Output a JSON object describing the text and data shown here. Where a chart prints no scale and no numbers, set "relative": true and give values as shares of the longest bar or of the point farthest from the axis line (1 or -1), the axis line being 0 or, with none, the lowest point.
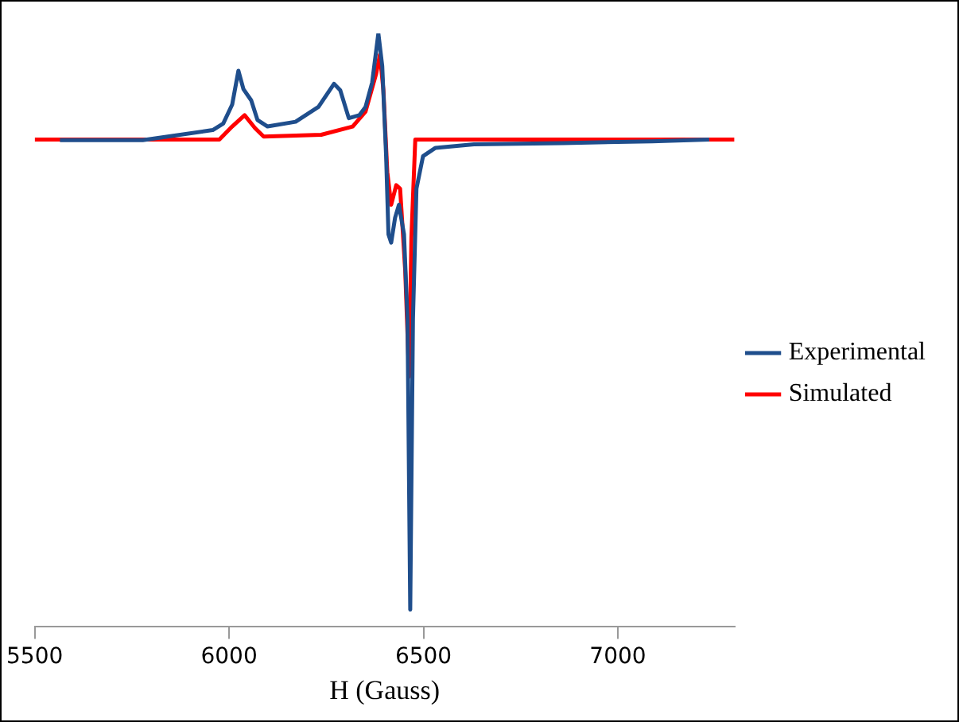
{
  "chart_data": {
    "type": "line",
    "xlabel": "H (Gauss)",
    "relative": true,
    "xlim": [
      5500,
      7300
    ],
    "xticks": [
      5500,
      6000,
      6500,
      7000
    ],
    "grid": false,
    "legend": "right",
    "marker": "none",
    "line_style": "solid",
    "series": [
      {
        "name": "Experimental",
        "color": "#1f4e8c",
        "x": [
          5565,
          5778,
          5958,
          5985,
          6008,
          6024,
          6037,
          6057,
          6073,
          6099,
          6171,
          6230,
          6270,
          6286,
          6308,
          6335,
          6351,
          6368,
          6384,
          6394,
          6404,
          6410,
          6417,
          6427,
          6437,
          6450,
          6459,
          6466,
          6473,
          6482,
          6499,
          6531,
          6630,
          6859,
          7088,
          7235
        ],
        "values": [
          0.82,
          0.82,
          0.837,
          0.848,
          0.88,
          0.937,
          0.906,
          0.887,
          0.854,
          0.843,
          0.851,
          0.876,
          0.915,
          0.904,
          0.857,
          0.862,
          0.876,
          0.917,
          1,
          0.945,
          0.793,
          0.661,
          0.647,
          0.689,
          0.711,
          0.661,
          0.518,
          0.028,
          0.518,
          0.738,
          0.793,
          0.807,
          0.813,
          0.815,
          0.818,
          0.821
        ]
      },
      {
        "name": "Simulated",
        "color": "#ff0000",
        "x": [
          5500,
          5975,
          6008,
          6040,
          6067,
          6089,
          6237,
          6318,
          6351,
          6378,
          6388,
          6397,
          6407,
          6417,
          6430,
          6440,
          6453,
          6463,
          6469,
          6479,
          7300
        ],
        "values": [
          0.821,
          0.821,
          0.843,
          0.862,
          0.84,
          0.826,
          0.829,
          0.843,
          0.868,
          0.931,
          0.964,
          0.904,
          0.766,
          0.711,
          0.744,
          0.738,
          0.601,
          0.421,
          0.656,
          0.821,
          0.821
        ]
      }
    ]
  }
}
